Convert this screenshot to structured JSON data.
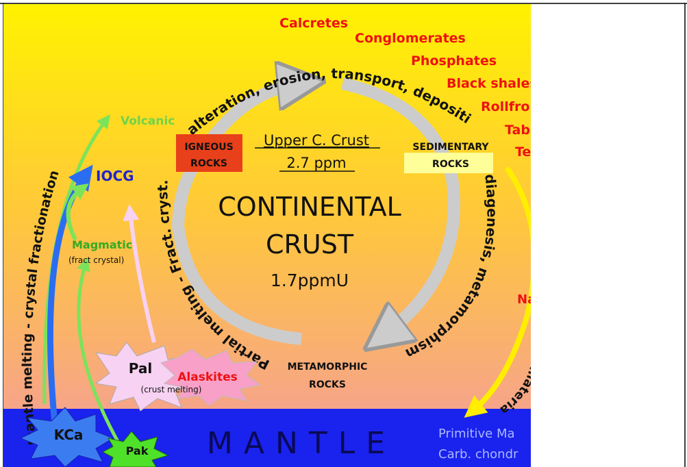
{
  "deposits": [
    "Calcretes",
    "Conglomerates",
    "Phosphates",
    "Black shales",
    "Rollfro",
    "Tab",
    "Te"
  ],
  "cycle": {
    "top": "alteration, erosion, transport, deposition",
    "left": "Partial melting - Fract. cryst.",
    "right": "diagenesis, metamorphism",
    "center": {
      "line1": "CONTINENTAL",
      "line2": "CRUST",
      "value": "1.7ppmU"
    },
    "upper": {
      "line1": "Upper C. Crust",
      "line2": "2.7 ppm"
    }
  },
  "rocks": {
    "igneous": [
      "IGNEOUS",
      "ROCKS"
    ],
    "sedimentary": [
      "SEDIMENTARY",
      "ROCKS"
    ],
    "metamorphic": [
      "METAMORPHIC",
      "ROCKS"
    ]
  },
  "magmatic": {
    "volcanic": "Volcanic",
    "iocg": "IOCG",
    "magmatic": "Magmatic",
    "magmatic_note": "(fract crystal)",
    "mantle_path": "mantle melting - crystal fractionation"
  },
  "crust_melting": {
    "pal": "Pal",
    "pal_note": "(crust melting)",
    "alaskites": "Alaskites"
  },
  "mantle": {
    "label": "MANTLE",
    "kca": "KCa",
    "pak": "Pak",
    "primitive": "Primitive Ma",
    "chondrite": "Carb. chondr",
    "na": "Na",
    "material": "al materia"
  }
}
